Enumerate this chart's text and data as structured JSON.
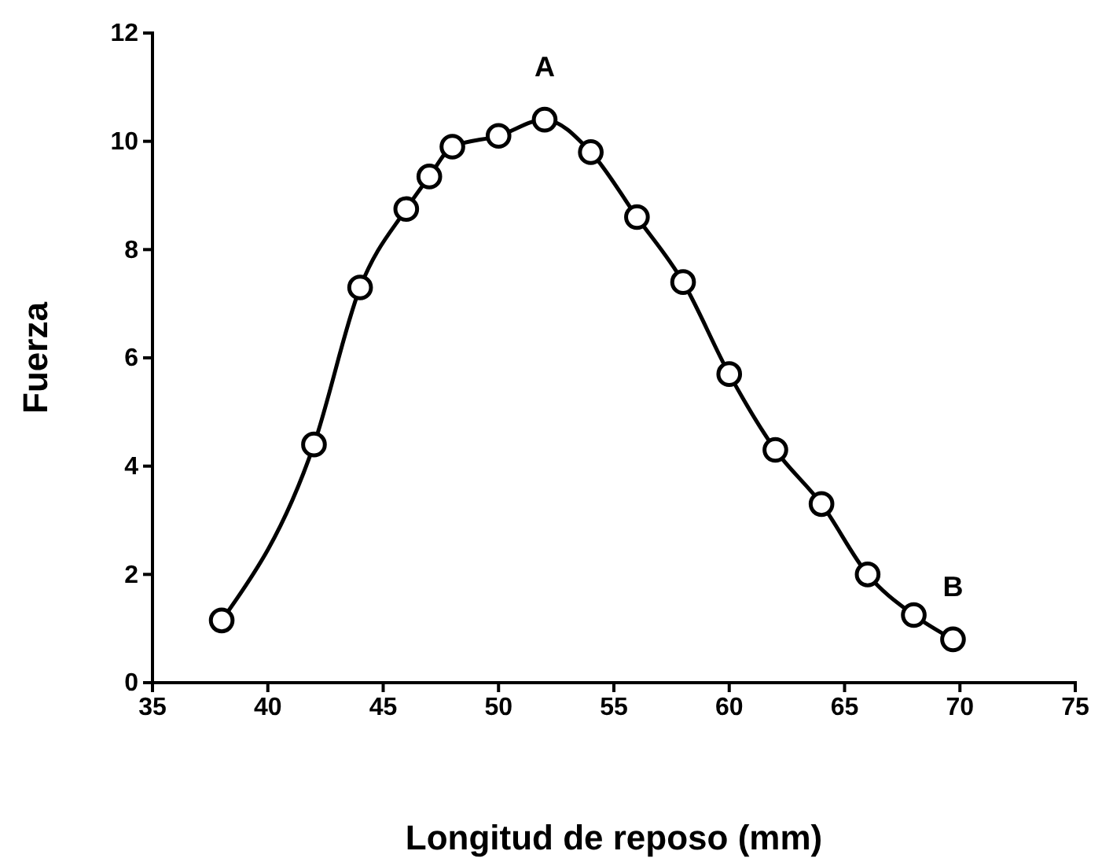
{
  "chart_data": {
    "type": "line",
    "xlabel": "Longitud de reposo (mm)",
    "ylabel": "Fuerza",
    "x": [
      38,
      42,
      44,
      46,
      47,
      48,
      50,
      52,
      54,
      56,
      58,
      60,
      62,
      64,
      66,
      68,
      69.7
    ],
    "series": [
      {
        "color": "#000000",
        "values": [
          1.15,
          4.4,
          7.3,
          8.75,
          9.35,
          9.9,
          10.1,
          10.4,
          9.8,
          8.6,
          7.4,
          5.7,
          4.3,
          3.3,
          2.0,
          1.25,
          0.8
        ]
      }
    ],
    "xlim": [
      35,
      75
    ],
    "xticks": [
      35,
      40,
      45,
      50,
      55,
      60,
      65,
      70,
      75
    ],
    "ylim": [
      0,
      12
    ],
    "yticks": [
      0,
      2,
      4,
      6,
      8,
      10,
      12
    ],
    "grid": false,
    "marker": "circle",
    "line_style": "solid",
    "annotations": [
      {
        "text": "A",
        "x": 52,
        "y": 10.4
      },
      {
        "text": "B",
        "x": 69.7,
        "y": 0.8
      }
    ]
  }
}
